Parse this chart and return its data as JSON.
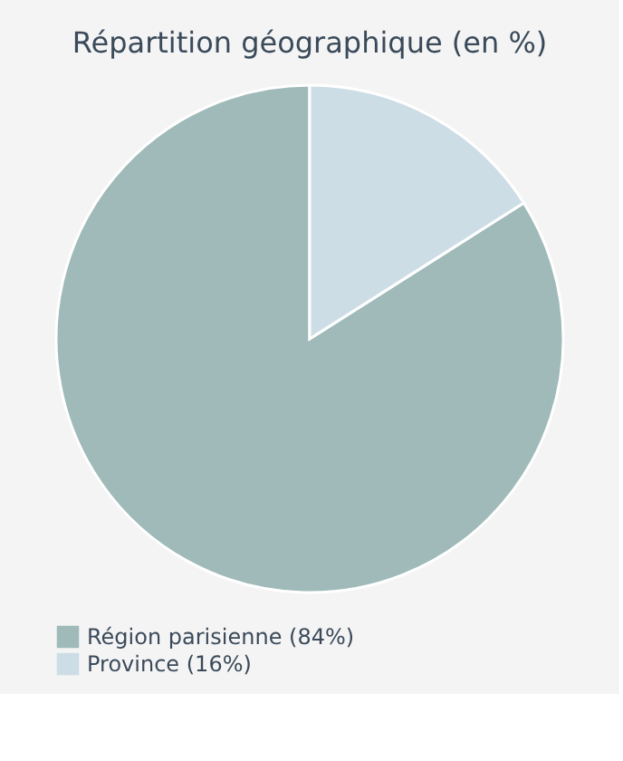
{
  "chart_data": {
    "type": "pie",
    "title": "Répartition géographique (en %)",
    "categories": [
      "Région parisienne (84%)",
      "Province (16%)"
    ],
    "values": [
      84,
      16
    ],
    "colors": [
      "#9fbab9",
      "#cddde6"
    ],
    "legend": "bottom"
  }
}
